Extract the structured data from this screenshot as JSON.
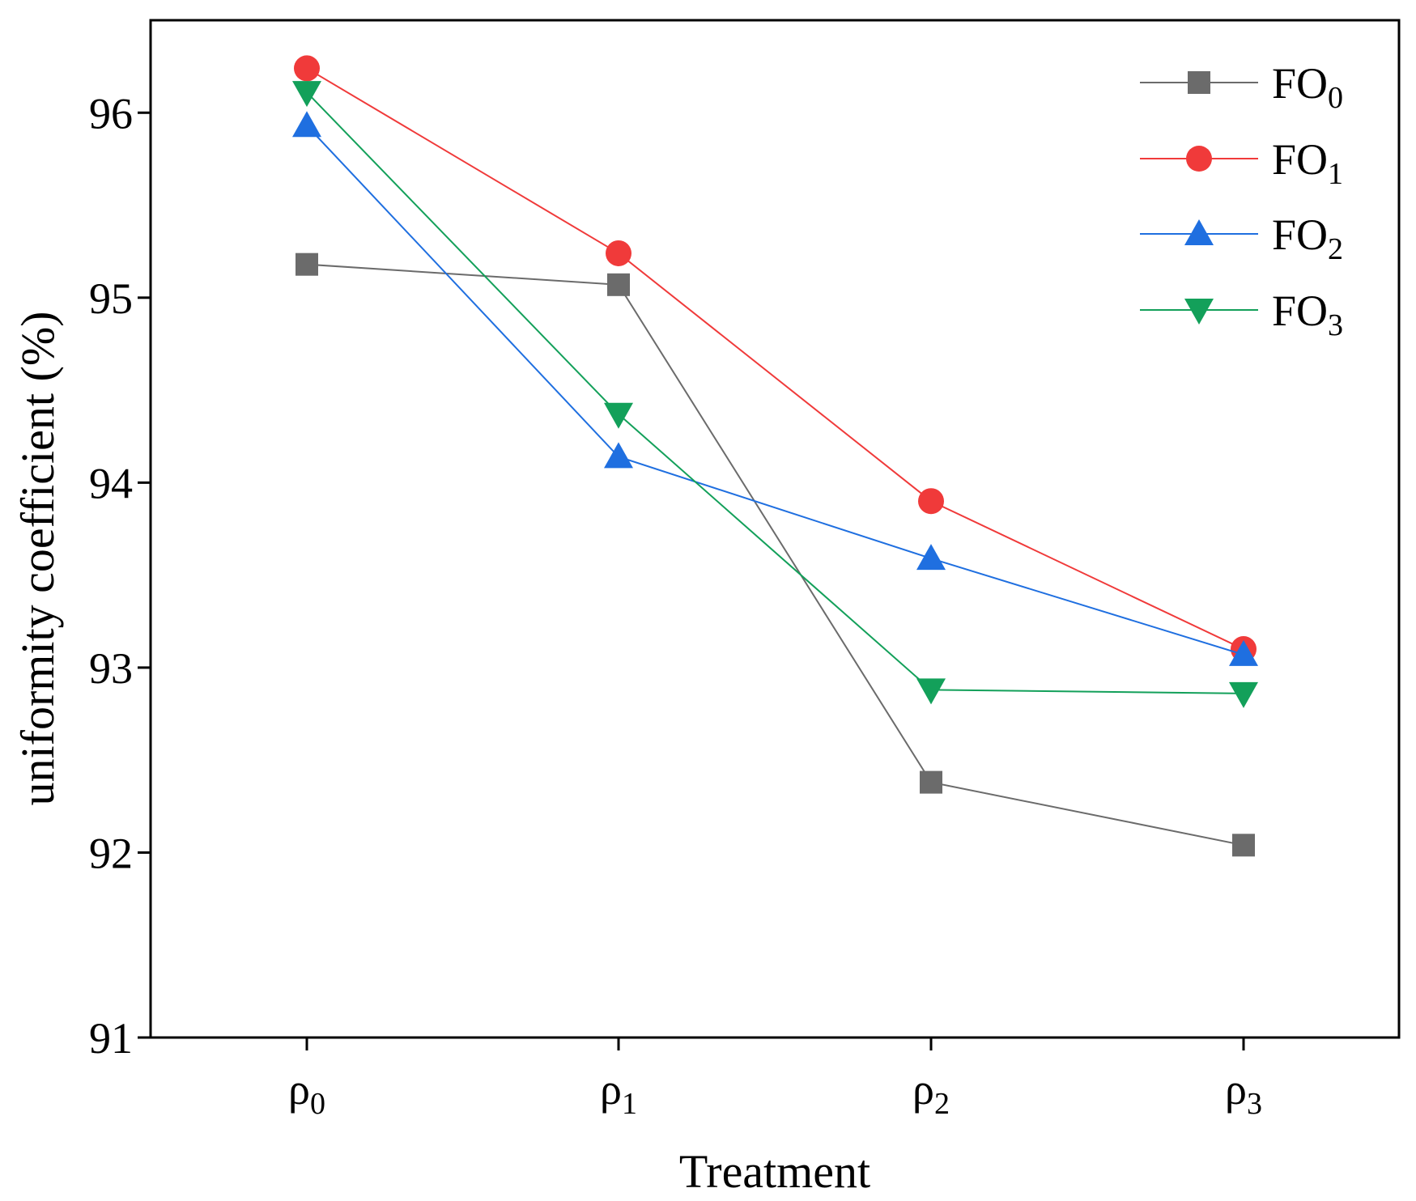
{
  "chart_data": {
    "type": "line",
    "title": "",
    "xlabel": "Treatment",
    "ylabel": "uniformity coefficient (%)",
    "categories": [
      {
        "base": "ρ",
        "sub": "0"
      },
      {
        "base": "ρ",
        "sub": "1"
      },
      {
        "base": "ρ",
        "sub": "2"
      },
      {
        "base": "ρ",
        "sub": "3"
      }
    ],
    "ylim": [
      91,
      96.5
    ],
    "yticks": [
      91,
      92,
      93,
      94,
      95,
      96
    ],
    "grid": false,
    "legend_position": "top-right",
    "series": [
      {
        "name": "FO",
        "sub": "0",
        "marker": "square",
        "color": "#6b6b6b",
        "values": [
          95.18,
          95.07,
          92.38,
          92.04
        ]
      },
      {
        "name": "FO",
        "sub": "1",
        "marker": "circle",
        "color": "#f03a3a",
        "values": [
          96.24,
          95.24,
          93.9,
          93.1
        ]
      },
      {
        "name": "FO",
        "sub": "2",
        "marker": "triangle-up",
        "color": "#1f6fe0",
        "values": [
          95.93,
          94.14,
          93.59,
          93.07
        ]
      },
      {
        "name": "FO",
        "sub": "3",
        "marker": "triangle-down",
        "color": "#13a05a",
        "values": [
          96.11,
          94.37,
          92.88,
          92.86
        ]
      }
    ]
  }
}
